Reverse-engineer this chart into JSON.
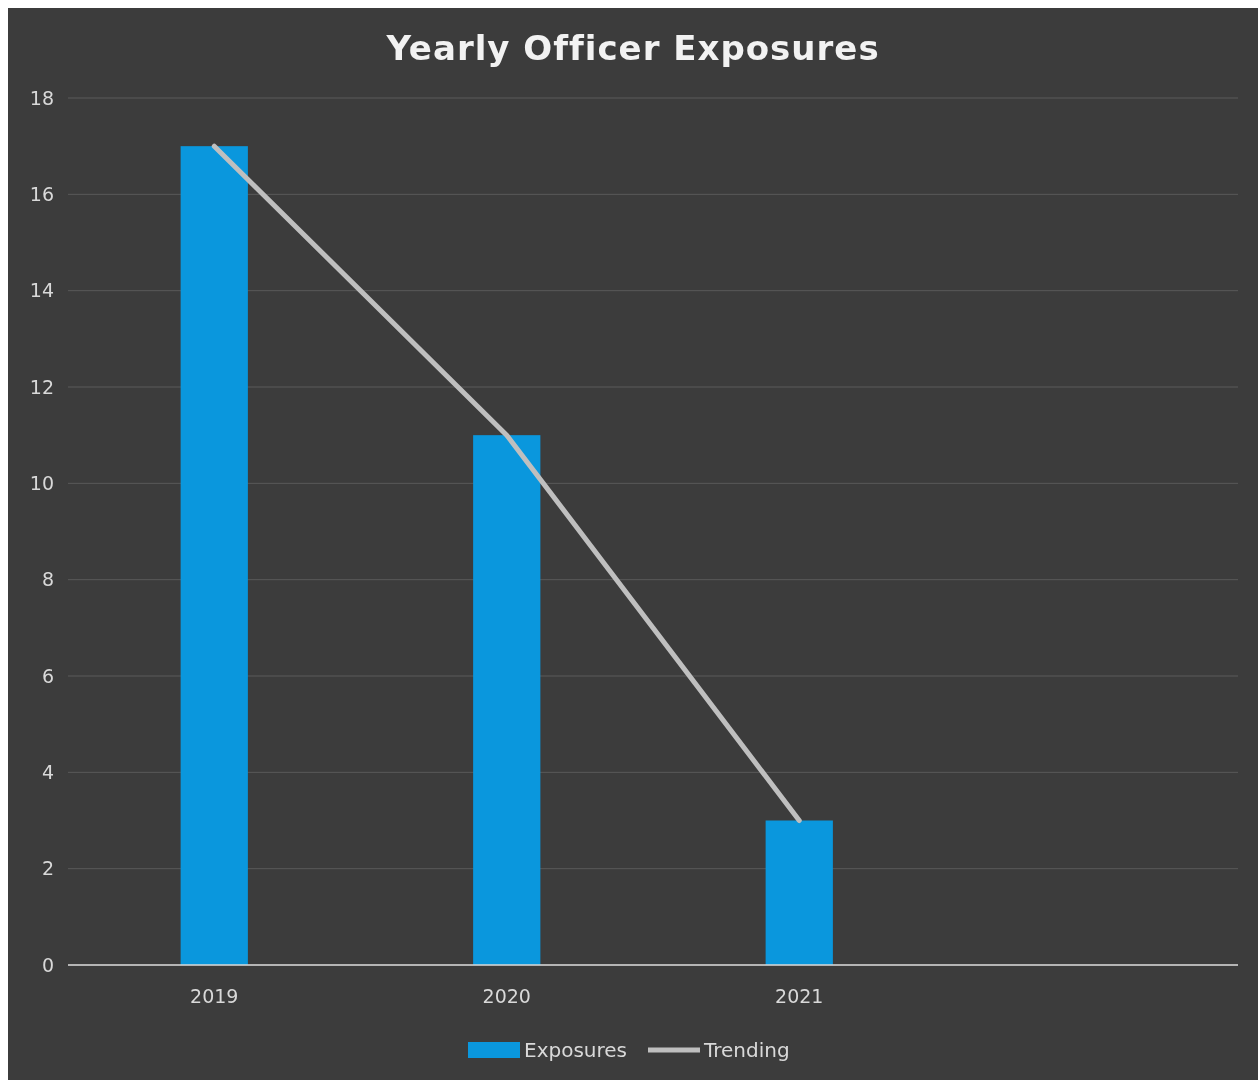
{
  "chart_data": {
    "type": "bar",
    "title": "Yearly Officer Exposures",
    "categories": [
      "2019",
      "2020",
      "2021",
      null
    ],
    "series": [
      {
        "name": "Exposures",
        "color": "#0a97dd",
        "values": [
          17,
          11,
          3,
          null
        ]
      },
      {
        "name": "Trending",
        "type": "line",
        "color": "#bfbfbf",
        "values": [
          17,
          11,
          3,
          null
        ]
      }
    ],
    "ylim": [
      0,
      18
    ],
    "yticks": [
      0,
      2,
      4,
      6,
      8,
      10,
      12,
      14,
      16,
      18
    ],
    "grid": "y",
    "legend": "bottom",
    "marker": "none",
    "line_style": "solid"
  }
}
